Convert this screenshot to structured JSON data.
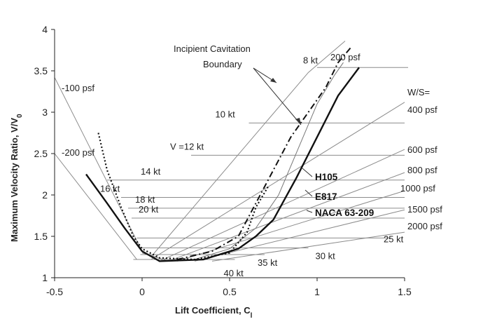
{
  "chart_data": {
    "type": "line",
    "title": "",
    "xlabel": "Lift Coefficient, C",
    "xlabel_sub": "l",
    "ylabel": "Maximum Velocity Ratio, V/V",
    "ylabel_sub": "0",
    "xlim": [
      -0.5,
      1.5
    ],
    "ylim": [
      1,
      4
    ],
    "xticks": [
      {
        "v": -0.5,
        "label": "-0.5"
      },
      {
        "v": 0,
        "label": "0"
      },
      {
        "v": 0.5,
        "label": "0.5"
      },
      {
        "v": 1,
        "label": "1"
      },
      {
        "v": 1.5,
        "label": "1.5"
      }
    ],
    "yticks": [
      {
        "v": 1,
        "label": "1"
      },
      {
        "v": 1.5,
        "label": "1.5"
      },
      {
        "v": 2,
        "label": "2"
      },
      {
        "v": 2.5,
        "label": "2.5"
      },
      {
        "v": 3,
        "label": "3"
      },
      {
        "v": 3.5,
        "label": "3.5"
      },
      {
        "v": 4,
        "label": "4"
      }
    ],
    "grid": false,
    "speed_lines": [
      {
        "name": "8 kt",
        "y": 3.54,
        "x0": 1.0,
        "x1": 1.52
      },
      {
        "name": "10 kt",
        "y": 2.87,
        "x0": 0.61,
        "x1": 1.5
      },
      {
        "name": "V =12 kt",
        "y": 2.48,
        "x0": 0.28,
        "x1": 1.5
      },
      {
        "name": "14 kt",
        "y": 2.18,
        "x0": -0.2,
        "x1": 1.5
      },
      {
        "name": "16 kt",
        "y": 1.97,
        "x0": -0.12,
        "x1": 1.5
      },
      {
        "name": "18 kt",
        "y": 1.84,
        "x0": -0.08,
        "x1": 1.5
      },
      {
        "name": "20 kt",
        "y": 1.72,
        "x0": -0.06,
        "x1": 1.5
      },
      {
        "name": "25 kt",
        "y": 1.48,
        "x0": -0.03,
        "x1": 1.42
      },
      {
        "name": "30 kt",
        "y": 1.36,
        "x0": -0.02,
        "x1": 0.95
      },
      {
        "name": "35 kt",
        "y": 1.28,
        "x0": -0.01,
        "x1": 0.7
      },
      {
        "name": "40 kt",
        "y": 1.22,
        "x0": -0.05,
        "x1": 0.53
      }
    ],
    "wing_loading_lines": [
      {
        "name": "-100 psf",
        "points": [
          [
            -0.5,
            3.42
          ],
          [
            0.0,
            1.32
          ]
        ]
      },
      {
        "name": "-200 psf",
        "points": [
          [
            -0.5,
            2.5
          ],
          [
            -0.03,
            1.22
          ]
        ]
      },
      {
        "name": "200 psf",
        "points": [
          [
            0.05,
            1.25
          ],
          [
            0.95,
            3.48
          ],
          [
            1.16,
            3.86
          ]
        ]
      },
      {
        "name": "400 psf",
        "points": [
          [
            0.05,
            1.22
          ],
          [
            1.5,
            3.12
          ]
        ]
      },
      {
        "name": "600 psf",
        "points": [
          [
            0.1,
            1.2
          ],
          [
            1.5,
            2.55
          ]
        ]
      },
      {
        "name": "800 psf",
        "points": [
          [
            0.15,
            1.2
          ],
          [
            1.5,
            2.27
          ]
        ]
      },
      {
        "name": "1000 psf",
        "points": [
          [
            0.2,
            1.2
          ],
          [
            1.5,
            2.05
          ]
        ]
      },
      {
        "name": "1500 psf",
        "points": [
          [
            0.3,
            1.2
          ],
          [
            1.5,
            1.82
          ]
        ]
      },
      {
        "name": "2000 psf",
        "points": [
          [
            0.4,
            1.2
          ],
          [
            1.5,
            1.55
          ]
        ]
      }
    ],
    "series": [
      {
        "name": "H105",
        "style": "solid",
        "points": [
          [
            -0.32,
            2.25
          ],
          [
            -0.2,
            1.9
          ],
          [
            -0.1,
            1.6
          ],
          [
            0.0,
            1.32
          ],
          [
            0.1,
            1.2
          ],
          [
            0.35,
            1.22
          ],
          [
            0.55,
            1.35
          ],
          [
            0.65,
            1.5
          ],
          [
            0.75,
            1.7
          ],
          [
            0.88,
            2.2
          ],
          [
            1.0,
            2.7
          ],
          [
            1.12,
            3.2
          ],
          [
            1.24,
            3.54
          ]
        ]
      },
      {
        "name": "E817",
        "style": "dashdot",
        "points": [
          [
            0.2,
            1.22
          ],
          [
            0.4,
            1.32
          ],
          [
            0.55,
            1.5
          ],
          [
            0.65,
            1.9
          ],
          [
            0.75,
            2.3
          ],
          [
            0.85,
            2.7
          ],
          [
            0.95,
            3.0
          ],
          [
            1.05,
            3.3
          ],
          [
            1.12,
            3.6
          ],
          [
            1.2,
            3.8
          ]
        ]
      },
      {
        "name": "NACA 63-209",
        "style": "dotted",
        "points": [
          [
            -0.25,
            2.75
          ],
          [
            -0.2,
            2.3
          ],
          [
            -0.12,
            1.85
          ],
          [
            -0.05,
            1.5
          ],
          [
            0.0,
            1.35
          ],
          [
            0.1,
            1.24
          ],
          [
            0.3,
            1.22
          ],
          [
            0.5,
            1.3
          ],
          [
            0.6,
            1.55
          ],
          [
            0.65,
            1.85
          ],
          [
            0.72,
            2.1
          ]
        ]
      }
    ],
    "cavitation_boundary": {
      "label": "Incipient Cavitation Boundary",
      "points": [
        [
          0.0,
          1.3
        ],
        [
          0.15,
          1.2
        ],
        [
          0.3,
          1.22
        ],
        [
          0.5,
          1.35
        ],
        [
          0.65,
          1.6
        ],
        [
          0.78,
          2.0
        ],
        [
          0.9,
          2.6
        ],
        [
          1.0,
          3.1
        ],
        [
          1.1,
          3.45
        ],
        [
          1.15,
          3.6
        ]
      ]
    },
    "annotations": {
      "cavitation_1": "Incipient Cavitation",
      "cavitation_2": "Boundary",
      "ws": "W/S="
    },
    "colors": {
      "thin": "#8c8c8c",
      "airfoil": "#111111",
      "axis": "#222222"
    }
  }
}
